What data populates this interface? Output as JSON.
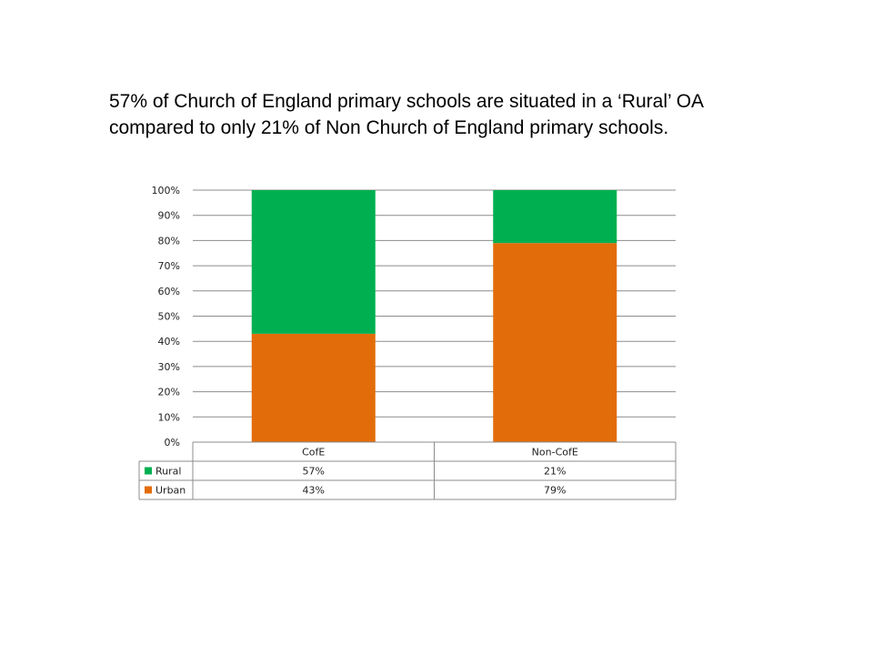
{
  "slide": {
    "headline": "57% of Church of England primary schools are situated in a ‘Rural’ OA compared to only 21% of Non Church of England primary schools."
  },
  "chart_data": {
    "type": "bar",
    "stacked": true,
    "categories": [
      "CofE",
      "Non-CofE"
    ],
    "series": [
      {
        "name": "Urban",
        "values": [
          43,
          79
        ],
        "labels": [
          "43%",
          "79%"
        ],
        "color": "#e36c0a"
      },
      {
        "name": "Rural",
        "values": [
          57,
          21
        ],
        "labels": [
          "57%",
          "21%"
        ],
        "color": "#00b050"
      }
    ],
    "ylim": [
      0,
      100
    ],
    "yticks": [
      "0%",
      "10%",
      "20%",
      "30%",
      "40%",
      "50%",
      "60%",
      "70%",
      "80%",
      "90%",
      "100%"
    ],
    "grid": true,
    "legend": "data table below chart",
    "table_row_order": [
      "Rural",
      "Urban"
    ]
  }
}
